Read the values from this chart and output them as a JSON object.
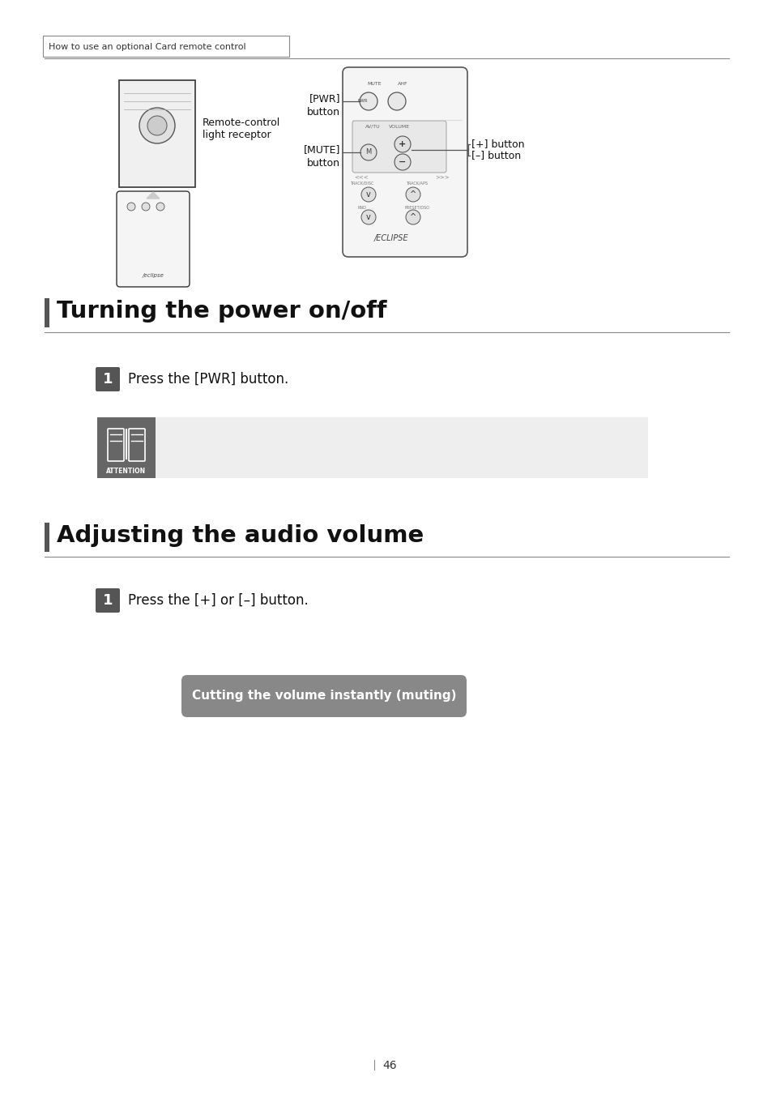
{
  "page_bg": "#ffffff",
  "header_text": "How to use an optional Card remote control",
  "header_line_color": "#888888",
  "section1_title": "Turning the power on/off",
  "section1_bar_color": "#555555",
  "section1_line_color": "#888888",
  "section1_step1_text": "Press the [PWR] button.",
  "attention_box_color": "#eeeeee",
  "attention_label_bg": "#666666",
  "attention_label_text": "ATTENTION",
  "section2_title": "Adjusting the audio volume",
  "section2_bar_color": "#555555",
  "section2_line_color": "#888888",
  "section2_step1_text": "Press the [+] or [–] button.",
  "muting_label_text": "Cutting the volume instantly (muting)",
  "muting_bg_color": "#888888",
  "muting_text_color": "#ffffff",
  "page_number": "46",
  "remote_label_pwr": "[PWR]\nbutton",
  "remote_label_mute": "[MUTE]\nbutton",
  "remote_label_plus": "[+] button",
  "remote_label_minus": "[–] button",
  "remote_control_label": "Remote-control\nlight receptor"
}
